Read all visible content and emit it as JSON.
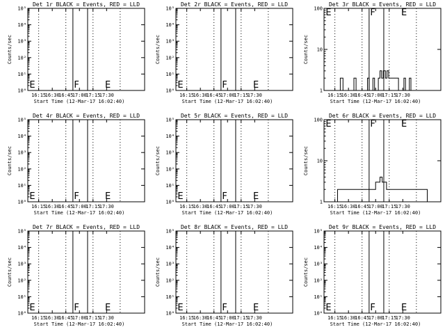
{
  "chart_data": [
    {
      "type": "line",
      "title": "Det 1r BLACK = Events, RED = LLD",
      "ylabel": "Counts/sec",
      "xlabel": "Start Time (12-Mar-17 16:02:40)",
      "yscale": "log",
      "ylim": [
        1,
        100000
      ],
      "yticks": [
        "10⁰",
        "10¹",
        "10²",
        "10³",
        "10⁴",
        "10⁵"
      ],
      "xticks": [
        "16:15",
        "16:30",
        "16:45",
        "17:00",
        "17:15",
        "17:30"
      ],
      "markers": [
        "E",
        "F",
        "E"
      ],
      "series": []
    },
    {
      "type": "line",
      "title": "Det 2r BLACK = Events, RED = LLD",
      "ylabel": "Counts/sec",
      "xlabel": "Start Time (12-Mar-17 16:02:40)",
      "yscale": "log",
      "ylim": [
        1,
        100000
      ],
      "yticks": [
        "10⁰",
        "10¹",
        "10²",
        "10³",
        "10⁴",
        "10⁵"
      ],
      "xticks": [
        "16:15",
        "16:30",
        "16:45",
        "17:00",
        "17:15",
        "17:30"
      ],
      "markers": [
        "E",
        "F",
        "E"
      ],
      "series": []
    },
    {
      "type": "line",
      "title": "Det 3r BLACK = Events, RED = LLD",
      "ylabel": "Counts/sec",
      "xlabel": "Start Time (12-Mar-17 16:02:40)",
      "yscale": "log",
      "ylim": [
        1,
        100
      ],
      "yticks": [
        "1",
        "10",
        "100"
      ],
      "xticks": [
        "16:15",
        "16:30",
        "16:45",
        "17:00",
        "17:15",
        "17:30"
      ],
      "markers": [
        "E",
        "F",
        "E"
      ],
      "series": [
        {
          "values": [
            [
              16.05,
              1
            ],
            [
              16.35,
              1
            ],
            [
              16.35,
              2
            ],
            [
              16.4,
              2
            ],
            [
              16.4,
              1
            ],
            [
              16.6,
              1
            ],
            [
              16.6,
              2
            ],
            [
              16.64,
              2
            ],
            [
              16.64,
              1
            ],
            [
              16.85,
              1
            ],
            [
              16.85,
              2
            ],
            [
              16.88,
              2
            ],
            [
              16.88,
              1
            ],
            [
              16.95,
              1
            ],
            [
              16.95,
              2
            ],
            [
              16.98,
              2
            ],
            [
              16.98,
              1
            ],
            [
              17.05,
              1
            ],
            [
              17.05,
              2
            ],
            [
              17.08,
              2
            ],
            [
              17.08,
              3
            ],
            [
              17.11,
              3
            ],
            [
              17.11,
              2
            ],
            [
              17.14,
              2
            ],
            [
              17.14,
              3
            ],
            [
              17.18,
              3
            ],
            [
              17.18,
              2
            ],
            [
              17.21,
              2
            ],
            [
              17.21,
              3
            ],
            [
              17.24,
              3
            ],
            [
              17.24,
              2
            ],
            [
              17.42,
              2
            ],
            [
              17.42,
              1
            ],
            [
              17.52,
              1
            ],
            [
              17.52,
              2
            ],
            [
              17.55,
              2
            ],
            [
              17.55,
              1
            ],
            [
              17.62,
              1
            ],
            [
              17.62,
              2
            ],
            [
              17.65,
              2
            ],
            [
              17.65,
              1
            ],
            [
              18.2,
              1
            ]
          ]
        }
      ]
    },
    {
      "type": "line",
      "title": "Det 4r BLACK = Events, RED = LLD",
      "ylabel": "Counts/sec",
      "xlabel": "Start Time (12-Mar-17 16:02:40)",
      "yscale": "log",
      "ylim": [
        1,
        100000
      ],
      "yticks": [
        "10⁰",
        "10¹",
        "10²",
        "10³",
        "10⁴",
        "10⁵"
      ],
      "xticks": [
        "16:15",
        "16:30",
        "16:45",
        "17:00",
        "17:15",
        "17:30"
      ],
      "markers": [
        "E",
        "F",
        "E"
      ],
      "series": []
    },
    {
      "type": "line",
      "title": "Det 5r BLACK = Events, RED = LLD",
      "ylabel": "Counts/sec",
      "xlabel": "Start Time (12-Mar-17 16:02:40)",
      "yscale": "log",
      "ylim": [
        1,
        100000
      ],
      "yticks": [
        "10⁰",
        "10¹",
        "10²",
        "10³",
        "10⁴",
        "10⁵"
      ],
      "xticks": [
        "16:15",
        "16:30",
        "16:45",
        "17:00",
        "17:15",
        "17:30"
      ],
      "markers": [
        "E",
        "F",
        "E"
      ],
      "series": []
    },
    {
      "type": "line",
      "title": "Det 6r BLACK = Events, RED = LLD",
      "ylabel": "Counts/sec",
      "xlabel": "Start Time (12-Mar-17 16:02:40)",
      "yscale": "log",
      "ylim": [
        1,
        100
      ],
      "yticks": [
        "1",
        "10",
        "100"
      ],
      "xticks": [
        "16:15",
        "16:30",
        "16:45",
        "17:00",
        "17:15",
        "17:30"
      ],
      "markers": [
        "E",
        "F",
        "E"
      ],
      "series": [
        {
          "values": [
            [
              16.05,
              1
            ],
            [
              16.3,
              1
            ],
            [
              16.3,
              2
            ],
            [
              17.0,
              2
            ],
            [
              17.0,
              3
            ],
            [
              17.08,
              3
            ],
            [
              17.08,
              4
            ],
            [
              17.12,
              4
            ],
            [
              17.12,
              3
            ],
            [
              17.2,
              3
            ],
            [
              17.2,
              2
            ],
            [
              17.95,
              2
            ],
            [
              17.95,
              1
            ],
            [
              18.2,
              1
            ]
          ]
        }
      ]
    },
    {
      "type": "line",
      "title": "Det 7r BLACK = Events, RED = LLD",
      "ylabel": "Counts/sec",
      "xlabel": "Start Time (12-Mar-17 16:02:40)",
      "yscale": "log",
      "ylim": [
        1,
        100000
      ],
      "yticks": [
        "10⁰",
        "10¹",
        "10²",
        "10³",
        "10⁴",
        "10⁵"
      ],
      "xticks": [
        "16:15",
        "16:30",
        "16:45",
        "17:00",
        "17:15",
        "17:30"
      ],
      "markers": [
        "E",
        "F",
        "E"
      ],
      "series": []
    },
    {
      "type": "line",
      "title": "Det 8r BLACK = Events, RED = LLD",
      "ylabel": "Counts/sec",
      "xlabel": "Start Time (12-Mar-17 16:02:40)",
      "yscale": "log",
      "ylim": [
        1,
        100000
      ],
      "yticks": [
        "10⁰",
        "10¹",
        "10²",
        "10³",
        "10⁴",
        "10⁵"
      ],
      "xticks": [
        "16:15",
        "16:30",
        "16:45",
        "17:00",
        "17:15",
        "17:30"
      ],
      "markers": [
        "E",
        "F",
        "E"
      ],
      "series": []
    },
    {
      "type": "line",
      "title": "Det 9r BLACK = Events, RED = LLD",
      "ylabel": "Counts/sec",
      "xlabel": "Start Time (12-Mar-17 16:02:40)",
      "yscale": "log",
      "ylim": [
        1,
        100000
      ],
      "yticks": [
        "10⁰",
        "10¹",
        "10²",
        "10³",
        "10⁴",
        "10⁵"
      ],
      "xticks": [
        "16:15",
        "16:30",
        "16:45",
        "17:00",
        "17:15",
        "17:30"
      ],
      "markers": [
        "E",
        "F",
        "E"
      ],
      "series": []
    }
  ]
}
